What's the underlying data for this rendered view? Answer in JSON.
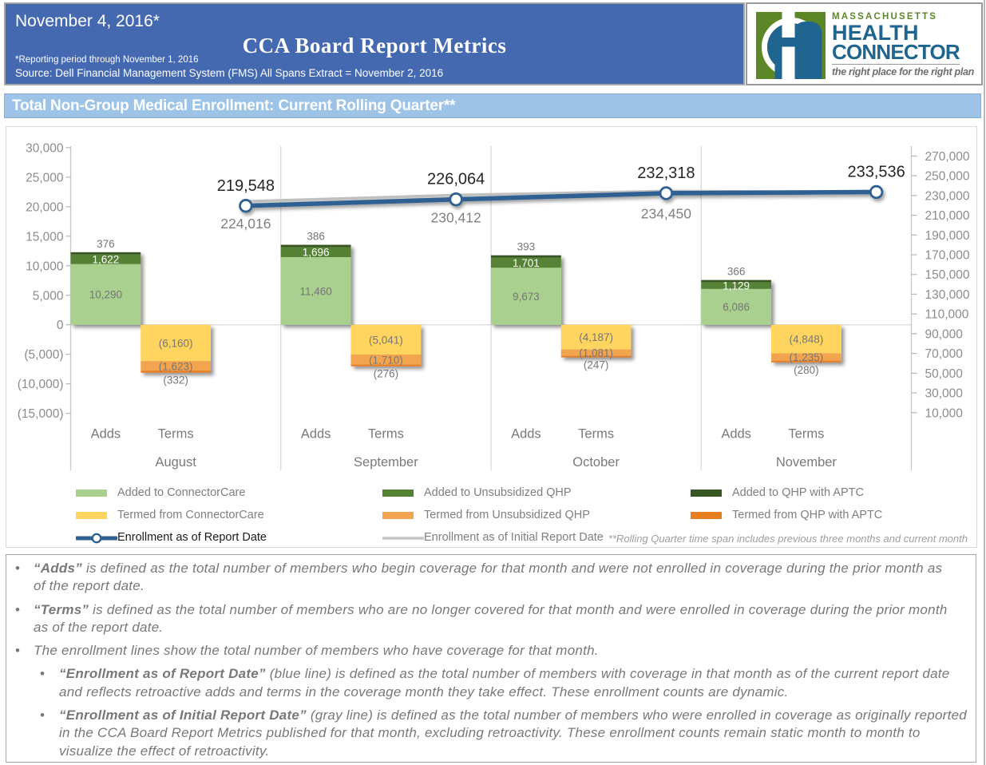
{
  "header": {
    "date": "November 4, 2016*",
    "title": "CCA Board Report Metrics",
    "note1": "*Reporting period through November 1, 2016",
    "note2": "Source: Dell Financial Management System (FMS) All Spans Extract = November 2, 2016",
    "banner_color": "#4569b0"
  },
  "logo": {
    "brand_top": "MASSACHUSETTS",
    "brand_line1": "HEALTH",
    "brand_line2": "CONNECTOR",
    "tagline": "the right place for the right plan",
    "green": "#5b8727",
    "blue": "#1f6590",
    "gray": "#6d6e71"
  },
  "section_title": "Total Non-Group Medical Enrollment: Current Rolling Quarter**",
  "section_bar_color": "#9dc3e6",
  "chart_data": {
    "type": "bar",
    "subtype": "stacked columns with two overlay lines",
    "months": [
      "August",
      "September",
      "October",
      "November"
    ],
    "category_labels": [
      "Adds",
      "Terms"
    ],
    "left_axis": {
      "min": -15000,
      "max": 30000,
      "step": 5000,
      "tick_labels": [
        "30,000",
        "25,000",
        "20,000",
        "15,000",
        "10,000",
        "5,000",
        "0",
        "(5,000)",
        "(10,000)",
        "(15,000)"
      ]
    },
    "right_axis": {
      "min": 10000,
      "max": 270000,
      "step": 20000,
      "tick_labels": [
        "270,000",
        "250,000",
        "230,000",
        "210,000",
        "190,000",
        "170,000",
        "150,000",
        "130,000",
        "110,000",
        "90,000",
        "70,000",
        "50,000",
        "30,000",
        "10,000"
      ]
    },
    "series": [
      {
        "name": "Added to ConnectorCare",
        "type": "bar",
        "stack": "adds",
        "color": "#a9d08e",
        "values": [
          10290,
          11460,
          9673,
          6086
        ],
        "labels": [
          "10,290",
          "11,460",
          "9,673",
          "6,086"
        ],
        "label_color": "#767676"
      },
      {
        "name": "Added to Unsubsidized QHP",
        "type": "bar",
        "stack": "adds",
        "color": "#548235",
        "values": [
          1622,
          1696,
          1701,
          1129
        ],
        "labels": [
          "1,622",
          "1,696",
          "1,701",
          "1,129"
        ],
        "label_color": "#ffffff"
      },
      {
        "name": "Added to QHP with APTC",
        "type": "bar",
        "stack": "adds",
        "color": "#375623",
        "values": [
          376,
          386,
          393,
          366
        ],
        "labels": [
          "376",
          "386",
          "393",
          "366"
        ],
        "label_color": "#767676"
      },
      {
        "name": "Termed from ConnectorCare",
        "type": "bar",
        "stack": "terms",
        "color": "#ffd45f",
        "values": [
          -6160,
          -5041,
          -4187,
          -4848
        ],
        "labels": [
          "(6,160)",
          "(5,041)",
          "(4,187)",
          "(4,848)"
        ],
        "label_color": "#767676"
      },
      {
        "name": "Termed from Unsubsidized QHP",
        "type": "bar",
        "stack": "terms",
        "color": "#f2a450",
        "values": [
          -1623,
          -1710,
          -1081,
          -1235
        ],
        "labels": [
          "(1,623)",
          "(1,710)",
          "(1,081)",
          "(1,235)"
        ],
        "label_color": "#767676"
      },
      {
        "name": "Termed from QHP with APTC",
        "type": "bar",
        "stack": "terms",
        "color": "#e87e22",
        "values": [
          -332,
          -276,
          -247,
          -280
        ],
        "labels": [
          "(332)",
          "(276)",
          "(247)",
          "(280)"
        ],
        "label_color": "#767676"
      },
      {
        "name": "Enrollment as of Report Date",
        "type": "line",
        "axis": "right",
        "color": "#2e6191",
        "values": [
          219548,
          226064,
          232318,
          233536
        ],
        "labels": [
          "219,548",
          "226,064",
          "232,318",
          "233,536"
        ],
        "label_color": "#262626"
      },
      {
        "name": "Enrollment as of Initial Report Date",
        "type": "line",
        "axis": "right",
        "color": "#bfbfbf",
        "values": [
          224016,
          230412,
          234450,
          233536
        ],
        "labels": [
          "224,016",
          "230,412",
          "234,450",
          ""
        ],
        "label_color": "#808080"
      }
    ]
  },
  "legend": {
    "items": [
      {
        "label": "Added to ConnectorCare",
        "swatch": "bar",
        "color": "#a9d08e",
        "row": 0,
        "col": 0
      },
      {
        "label": "Added to Unsubsidized QHP",
        "swatch": "bar",
        "color": "#548235",
        "row": 0,
        "col": 1
      },
      {
        "label": "Added to QHP with APTC",
        "swatch": "bar",
        "color": "#375623",
        "row": 0,
        "col": 2
      },
      {
        "label": "Termed from ConnectorCare",
        "swatch": "bar",
        "color": "#ffd45f",
        "row": 1,
        "col": 0
      },
      {
        "label": "Termed from Unsubsidized QHP",
        "swatch": "bar",
        "color": "#f2a450",
        "row": 1,
        "col": 1
      },
      {
        "label": "Termed from QHP with APTC",
        "swatch": "bar",
        "color": "#e87e22",
        "row": 1,
        "col": 2
      },
      {
        "label": "Enrollment as of Report Date",
        "swatch": "line-marker",
        "color": "#2e6191",
        "row": 2,
        "col": 0,
        "dark_label": true
      },
      {
        "label": "Enrollment as of Initial Report Date",
        "swatch": "line",
        "color": "#c6c6c6",
        "row": 2,
        "col": 1
      }
    ],
    "note": "**Rolling Quarter time span includes previous three months and current month"
  },
  "footer": {
    "bullets": [
      {
        "level": 1,
        "lead": "“Adds”",
        "lines": [
          " is defined as the total number of members who begin coverage for that month and were not enrolled in coverage during the prior month as",
          "of the report date."
        ]
      },
      {
        "level": 1,
        "lead": "“Terms”",
        "lines": [
          " is defined as the total number of members who are no longer covered for that month and were enrolled in coverage during the prior month",
          "as of the report date."
        ]
      },
      {
        "level": 1,
        "lead": "",
        "lines": [
          "The enrollment lines show the total number of members who have coverage for that month."
        ]
      },
      {
        "level": 2,
        "lead": "“Enrollment as of Report Date”",
        "lines": [
          " (blue line) is defined as the total number of members with coverage in that month as of the current report date",
          "and reflects retroactive adds and terms in the coverage month they take effect. These enrollment counts are dynamic."
        ]
      },
      {
        "level": 2,
        "lead": "“Enrollment as of Initial Report Date”",
        "lines": [
          " (gray line) is defined as the total number of members who were enrolled in coverage as originally reported",
          "in the CCA Board Report Metrics published for that month, excluding retroactivity. These enrollment counts remain static month to month to",
          "visualize the effect of retroactivity."
        ]
      }
    ]
  }
}
